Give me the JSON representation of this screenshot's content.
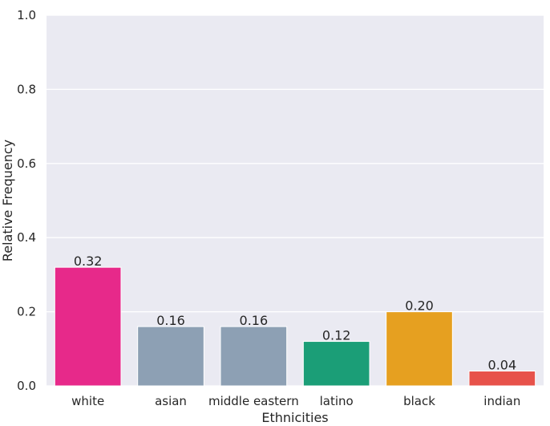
{
  "chart_data": {
    "type": "bar",
    "title": "",
    "xlabel": "Ethnicities",
    "ylabel": "Relative Frequency",
    "ylim": [
      0,
      1.0
    ],
    "yticks": [
      "0.0",
      "0.2",
      "0.4",
      "0.6",
      "0.8",
      "1.0"
    ],
    "grid": true,
    "categories": [
      "white",
      "asian",
      "middle eastern",
      "latino",
      "black",
      "indian"
    ],
    "values": [
      0.32,
      0.16,
      0.16,
      0.12,
      0.2,
      0.04
    ],
    "data_labels": [
      "0.32",
      "0.16",
      "0.16",
      "0.12",
      "0.20",
      "0.04"
    ],
    "colors": [
      "#e7298a",
      "#8da0b4",
      "#8da0b4",
      "#1b9e77",
      "#e6a020",
      "#e7524a"
    ],
    "plot_background": "#eaeaf2"
  }
}
